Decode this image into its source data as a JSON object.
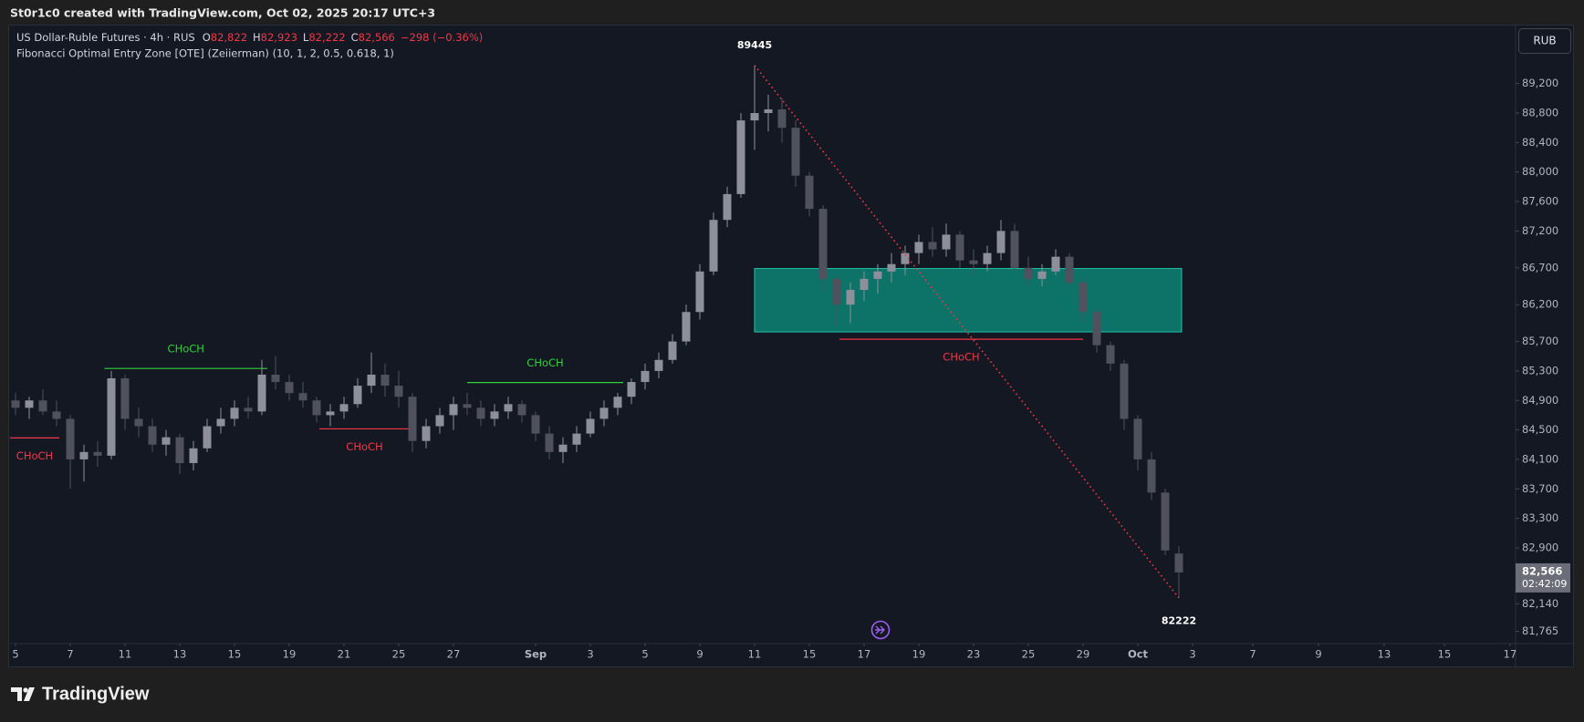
{
  "credit": "St0r1c0 created with TradingView.com, Oct 02, 2025 20:17 UTC+3",
  "brand": "TradingView",
  "chart_data": {
    "type": "candlestick",
    "title": "US Dollar-Ruble Futures · 4h · RUS",
    "ohlc_legend": [
      {
        "label": "O",
        "value": "82,822"
      },
      {
        "label": "H",
        "value": "82,923"
      },
      {
        "label": "L",
        "value": "82,222"
      },
      {
        "label": "C",
        "value": "82,566"
      }
    ],
    "change": "−298 (−0.36%)",
    "indicator": "Fibonacci Optimal Entry Zone [OTE] (Zeiierman) (10, 1, 2, 0.5, 0.618, 1)",
    "currency": "RUB",
    "up_color": "#8d909a",
    "down_color": "#4f525d",
    "x": [
      0,
      0.5,
      1,
      1.5,
      2,
      2.5,
      3,
      3.5,
      4,
      4.5,
      5,
      5.5,
      6,
      6.5,
      7,
      7.5,
      8,
      8.5,
      9,
      9.5,
      10,
      10.5,
      11,
      11.5,
      12,
      12.5,
      13,
      13.5,
      14,
      14.5,
      15,
      15.5,
      16,
      16.5,
      17,
      17.5,
      18,
      18.5,
      19,
      19.5,
      20,
      20.5,
      21,
      21.5,
      22,
      22.5,
      23,
      23.5,
      24,
      24.5,
      25,
      25.5,
      26,
      26.5,
      27,
      27.5,
      28,
      28.5,
      29,
      29.5,
      30,
      30.5,
      31,
      31.5,
      32,
      32.5,
      33,
      33.5,
      34,
      34.5,
      35,
      35.5,
      36,
      36.5,
      37,
      37.5,
      38,
      38.5,
      39,
      39.5,
      40,
      40.5,
      41,
      41.5,
      42,
      42.5
    ],
    "open": [
      84900,
      84800,
      84900,
      84750,
      84650,
      84100,
      84200,
      84150,
      85200,
      84650,
      84550,
      84300,
      84400,
      84050,
      84250,
      84550,
      84650,
      84800,
      84750,
      85250,
      85150,
      85000,
      84900,
      84700,
      84750,
      84850,
      85100,
      85250,
      85100,
      84950,
      84350,
      84550,
      84700,
      84850,
      84800,
      84650,
      84750,
      84850,
      84700,
      84450,
      84200,
      84300,
      84450,
      84650,
      84800,
      84950,
      85150,
      85300,
      85450,
      85700,
      86100,
      86650,
      87350,
      87700,
      88700,
      88800,
      88850,
      88600,
      87950,
      87500,
      86550,
      86200,
      86400,
      86550,
      86650,
      86750,
      86900,
      87050,
      86950,
      87150,
      86800,
      86750,
      86900,
      87200,
      86700,
      86550,
      86650,
      86850,
      86500,
      86100,
      85650,
      85400,
      84650,
      84100,
      83650,
      82822
    ],
    "high": [
      85000,
      84950,
      85050,
      84900,
      84700,
      84300,
      84350,
      85300,
      85250,
      84800,
      84650,
      84500,
      84450,
      84350,
      84650,
      84800,
      84900,
      84950,
      85450,
      85500,
      85250,
      85150,
      84950,
      84850,
      84950,
      85200,
      85550,
      85400,
      85300,
      85000,
      84650,
      84800,
      84950,
      85000,
      84900,
      84850,
      84950,
      84900,
      84750,
      84550,
      84400,
      84550,
      84750,
      84900,
      85000,
      85200,
      85400,
      85550,
      85800,
      86200,
      86750,
      87450,
      87800,
      88800,
      89445,
      89050,
      89000,
      88700,
      88000,
      87550,
      86600,
      86500,
      86650,
      86750,
      86900,
      87000,
      87150,
      87250,
      87300,
      87200,
      86950,
      87000,
      87350,
      87300,
      86850,
      86750,
      86950,
      86900,
      86550,
      86150,
      85700,
      85450,
      84700,
      84200,
      83700,
      82923
    ],
    "low": [
      84700,
      84650,
      84700,
      84550,
      83700,
      83800,
      84000,
      84100,
      84500,
      84400,
      84200,
      84150,
      83900,
      83950,
      84200,
      84450,
      84550,
      84650,
      84700,
      85050,
      84900,
      84800,
      84600,
      84550,
      84650,
      84800,
      85000,
      84950,
      84800,
      84200,
      84250,
      84450,
      84500,
      84700,
      84550,
      84550,
      84650,
      84600,
      84350,
      84100,
      84050,
      84200,
      84400,
      84550,
      84700,
      84850,
      85050,
      85200,
      85400,
      85650,
      86000,
      86600,
      87250,
      87650,
      88300,
      88550,
      88400,
      87800,
      87400,
      86400,
      85900,
      85950,
      86250,
      86350,
      86500,
      86600,
      86750,
      86850,
      86850,
      86700,
      86600,
      86650,
      86800,
      86650,
      86450,
      86450,
      86600,
      86450,
      85950,
      85550,
      85300,
      84500,
      83950,
      83550,
      82800,
      82222
    ],
    "close": [
      84800,
      84900,
      84750,
      84650,
      84100,
      84200,
      84150,
      85200,
      84650,
      84550,
      84300,
      84400,
      84050,
      84250,
      84550,
      84650,
      84800,
      84750,
      85250,
      85150,
      85000,
      84900,
      84700,
      84750,
      84850,
      85100,
      85250,
      85100,
      84950,
      84350,
      84550,
      84700,
      84850,
      84800,
      84650,
      84750,
      84850,
      84700,
      84450,
      84200,
      84300,
      84450,
      84650,
      84800,
      84950,
      85150,
      85300,
      85450,
      85700,
      86100,
      86650,
      87350,
      87700,
      88700,
      88800,
      88850,
      88600,
      87950,
      87500,
      86550,
      86200,
      86400,
      86550,
      86650,
      86750,
      86900,
      87050,
      86950,
      87150,
      86800,
      86750,
      86900,
      87200,
      86700,
      86550,
      86650,
      86850,
      86500,
      86100,
      85650,
      85400,
      84650,
      84100,
      83650,
      82864,
      82566
    ],
    "xlim": [
      -0.2,
      54.8
    ],
    "xticks": [
      {
        "value": 0,
        "label": "5"
      },
      {
        "value": 2,
        "label": "7"
      },
      {
        "value": 4,
        "label": "11"
      },
      {
        "value": 6,
        "label": "13"
      },
      {
        "value": 8,
        "label": "15"
      },
      {
        "value": 10,
        "label": "19"
      },
      {
        "value": 12,
        "label": "21"
      },
      {
        "value": 14,
        "label": "25"
      },
      {
        "value": 16,
        "label": "27"
      },
      {
        "value": 19,
        "label": "Sep"
      },
      {
        "value": 21,
        "label": "3"
      },
      {
        "value": 23,
        "label": "5"
      },
      {
        "value": 25,
        "label": "9"
      },
      {
        "value": 27,
        "label": "11"
      },
      {
        "value": 29,
        "label": "15"
      },
      {
        "value": 31,
        "label": "17"
      },
      {
        "value": 33,
        "label": "19"
      },
      {
        "value": 35,
        "label": "23"
      },
      {
        "value": 37,
        "label": "25"
      },
      {
        "value": 39,
        "label": "29"
      },
      {
        "value": 41,
        "label": "Oct"
      },
      {
        "value": 43,
        "label": "3"
      },
      {
        "value": 45.2,
        "label": "7"
      },
      {
        "value": 47.6,
        "label": "9"
      },
      {
        "value": 50,
        "label": "13"
      },
      {
        "value": 52.2,
        "label": "15"
      },
      {
        "value": 54.6,
        "label": "17"
      }
    ],
    "ylim": [
      81600,
      90000
    ],
    "yticks": [
      {
        "value": 81765,
        "label": "81,765"
      },
      {
        "value": 82140,
        "label": "82,140"
      },
      {
        "value": 82900,
        "label": "82,900"
      },
      {
        "value": 83300,
        "label": "83,300"
      },
      {
        "value": 83700,
        "label": "83,700"
      },
      {
        "value": 84100,
        "label": "84,100"
      },
      {
        "value": 84500,
        "label": "84,500"
      },
      {
        "value": 84900,
        "label": "84,900"
      },
      {
        "value": 85300,
        "label": "85,300"
      },
      {
        "value": 85700,
        "label": "85,700"
      },
      {
        "value": 86200,
        "label": "86,200"
      },
      {
        "value": 86700,
        "label": "86,700"
      },
      {
        "value": 87200,
        "label": "87,200"
      },
      {
        "value": 87600,
        "label": "87,600"
      },
      {
        "value": 88000,
        "label": "88,000"
      },
      {
        "value": 88400,
        "label": "88,400"
      },
      {
        "value": 88800,
        "label": "88,800"
      },
      {
        "value": 89200,
        "label": "89,200"
      }
    ],
    "grid": false,
    "last_price": {
      "value": 82566,
      "label": "82,566"
    },
    "countdown": "02:42:09",
    "swing_high": {
      "x": 27,
      "value": 89445
    },
    "swing_low": {
      "x": 42.5,
      "value": 82222
    },
    "swing_line_color": "#f23645",
    "ote_zone": {
      "x0": 27,
      "x1": 42.6,
      "top": 86690,
      "bottom": 85830,
      "color": "#0b8a78"
    },
    "choch": [
      {
        "label": "CHoCH",
        "value": 84391,
        "x0": -0.2,
        "x1": 1.6,
        "direction": "bearish",
        "color": "#f23645"
      },
      {
        "label": "CHoCH",
        "value": 85334,
        "x0": 3.25,
        "x1": 9.2,
        "direction": "bullish",
        "color": "#2fd13a"
      },
      {
        "label": "CHoCH",
        "value": 84514,
        "x0": 11.1,
        "x1": 14.4,
        "direction": "bearish",
        "color": "#f23645"
      },
      {
        "label": "CHoCH",
        "value": 85143,
        "x0": 16.5,
        "x1": 22.2,
        "direction": "bullish",
        "color": "#2fd13a"
      },
      {
        "label": "CHoCH",
        "value": 85730,
        "x0": 30.1,
        "x1": 39,
        "direction": "bearish",
        "color": "#f23645"
      }
    ]
  }
}
